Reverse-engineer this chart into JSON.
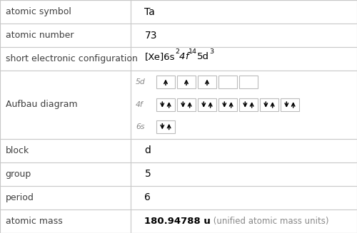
{
  "rows": [
    {
      "label": "atomic symbol",
      "value": "Ta",
      "type": "text"
    },
    {
      "label": "atomic number",
      "value": "73",
      "type": "text"
    },
    {
      "label": "short electronic configuration",
      "value": "",
      "type": "formula"
    },
    {
      "label": "Aufbau diagram",
      "value": "",
      "type": "aufbau"
    },
    {
      "label": "block",
      "value": "d",
      "type": "text"
    },
    {
      "label": "group",
      "value": "5",
      "type": "text"
    },
    {
      "label": "period",
      "value": "6",
      "type": "text"
    },
    {
      "label": "atomic mass",
      "value": "180.94788 u",
      "value2": " (unified atomic mass units)",
      "type": "mass"
    }
  ],
  "col_split": 0.365,
  "bg_color": "#ffffff",
  "border_color": "#c8c8c8",
  "label_color": "#404040",
  "value_color": "#000000",
  "font_size": 9.0,
  "row_heights_rel": [
    1,
    1,
    1,
    2.9,
    1,
    1,
    1,
    1
  ],
  "aufbau_5d": [
    1,
    1,
    1,
    0,
    0
  ],
  "aufbau_4f": [
    2,
    2,
    2,
    2,
    2,
    2,
    2
  ],
  "aufbau_6s": [
    2
  ],
  "formula_parts": [
    {
      "text": "[Xe]6s",
      "super": false,
      "italic": false
    },
    {
      "text": "2",
      "super": true,
      "italic": false
    },
    {
      "text": "4f",
      "super": false,
      "italic": true
    },
    {
      "text": "14",
      "super": true,
      "italic": false
    },
    {
      "text": "5d",
      "super": false,
      "italic": false
    },
    {
      "text": "3",
      "super": true,
      "italic": false
    }
  ]
}
